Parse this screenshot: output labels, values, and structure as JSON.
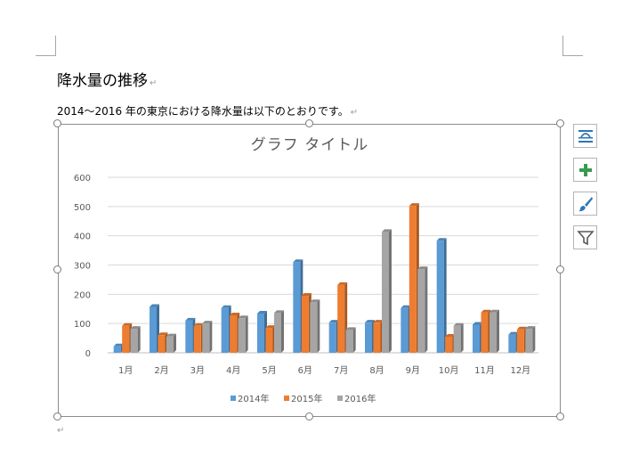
{
  "document": {
    "heading": "降水量の推移",
    "body_line": "2014～2016 年の東京における降水量は以下のとおりです。",
    "paragraph_mark": "↵"
  },
  "side_buttons": [
    {
      "name": "layout-options-button",
      "icon": "layout-options-icon"
    },
    {
      "name": "chart-elements-button",
      "icon": "plus-icon"
    },
    {
      "name": "chart-styles-button",
      "icon": "paintbrush-icon"
    },
    {
      "name": "chart-filters-button",
      "icon": "funnel-icon"
    }
  ],
  "chart_data": {
    "type": "bar",
    "title": "グラフ タイトル",
    "categories": [
      "1月",
      "2月",
      "3月",
      "4月",
      "5月",
      "6月",
      "7月",
      "8月",
      "9月",
      "10月",
      "11月",
      "12月"
    ],
    "series": [
      {
        "name": "2014年",
        "color": "#5b9bd5",
        "values": [
          22,
          157,
          110,
          153,
          134,
          310,
          103,
          103,
          153,
          383,
          96,
          62
        ]
      },
      {
        "name": "2015年",
        "color": "#ed7d31",
        "values": [
          92,
          60,
          92,
          128,
          85,
          195,
          232,
          103,
          502,
          55,
          138,
          80
        ]
      },
      {
        "name": "2016年",
        "color": "#a5a5a5",
        "values": [
          82,
          56,
          100,
          118,
          136,
          173,
          78,
          413,
          286,
          92,
          138,
          82
        ]
      }
    ],
    "ylim": [
      0,
      600
    ],
    "yticks": [
      0,
      100,
      200,
      300,
      400,
      500,
      600
    ],
    "grid": true,
    "legend_position": "bottom"
  }
}
